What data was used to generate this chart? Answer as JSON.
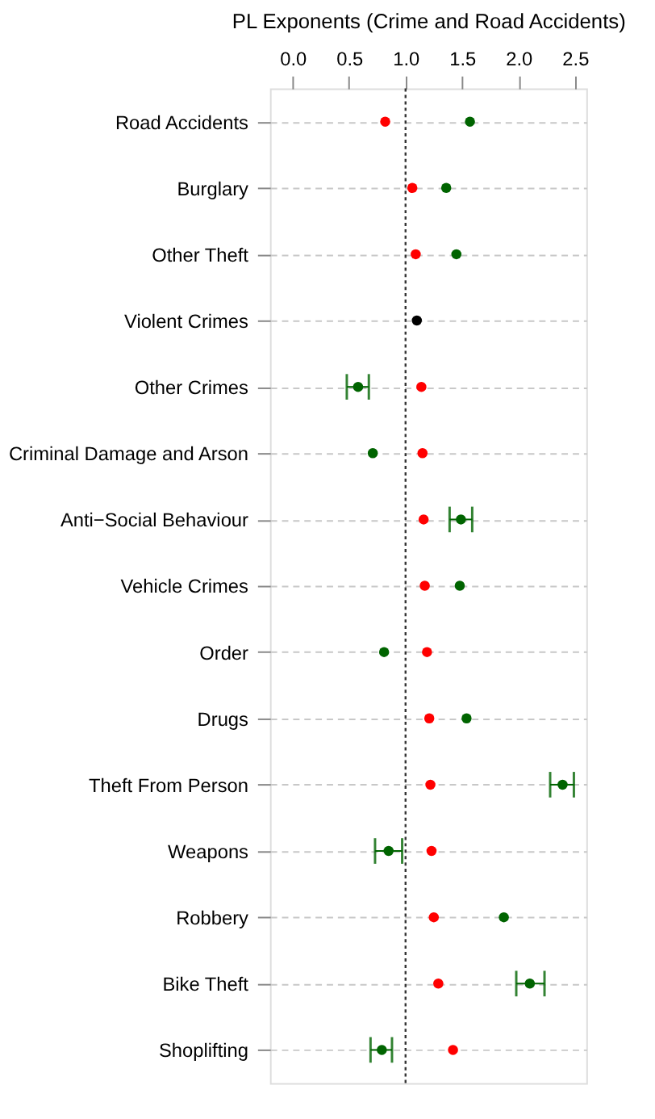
{
  "chart_data": {
    "type": "scatter",
    "xlabel": "PL Exponents (Crime and Road Accidents)",
    "categories": [
      "Road Accidents",
      "Burglary",
      "Other Theft",
      "Violent Crimes",
      "Other Crimes",
      "Criminal Damage and Arson",
      "Anti−Social Behaviour",
      "Vehicle Crimes",
      "Order",
      "Drugs",
      "Theft From Person",
      "Weapons",
      "Robbery",
      "Bike Theft",
      "Shoplifting"
    ],
    "orientation": "horizontal",
    "xlim": [
      -0.2,
      2.6
    ],
    "xticks": [
      {
        "value": 0,
        "label": "0.0"
      },
      {
        "value": 0.5,
        "label": "0.5"
      },
      {
        "value": 1,
        "label": "1.0"
      },
      {
        "value": 1.5,
        "label": "1.5"
      },
      {
        "value": 2,
        "label": "2.0"
      },
      {
        "value": 2.5,
        "label": "2.5"
      }
    ],
    "grid": "y",
    "marker": "circle",
    "series": [
      {
        "color": "#ff0000",
        "values": [
          0.82,
          1.06,
          1.09,
          null,
          1.14,
          1.15,
          1.16,
          1.17,
          1.19,
          1.21,
          1.22,
          1.23,
          1.25,
          1.29,
          1.42
        ]
      },
      {
        "color": "#006400",
        "values": [
          1.57,
          1.36,
          1.45,
          null,
          0.58,
          0.71,
          1.49,
          1.48,
          0.81,
          1.54,
          2.39,
          0.85,
          1.87,
          2.1,
          0.79
        ],
        "errors": [
          null,
          null,
          null,
          null,
          [
            0.48,
            0.675
          ],
          null,
          [
            1.39,
            1.59
          ],
          null,
          null,
          null,
          [
            2.28,
            2.49
          ],
          [
            0.73,
            0.97
          ],
          null,
          [
            1.98,
            2.23
          ],
          [
            0.69,
            0.88
          ]
        ]
      },
      {
        "color": "#000000",
        "values": [
          null,
          null,
          null,
          1.1,
          null,
          null,
          null,
          null,
          null,
          null,
          null,
          null,
          null,
          null,
          null
        ]
      }
    ],
    "ref_lines": [
      {
        "axis": "x",
        "value": 1.0,
        "color": "#333333",
        "line_style": "dotted"
      }
    ]
  }
}
